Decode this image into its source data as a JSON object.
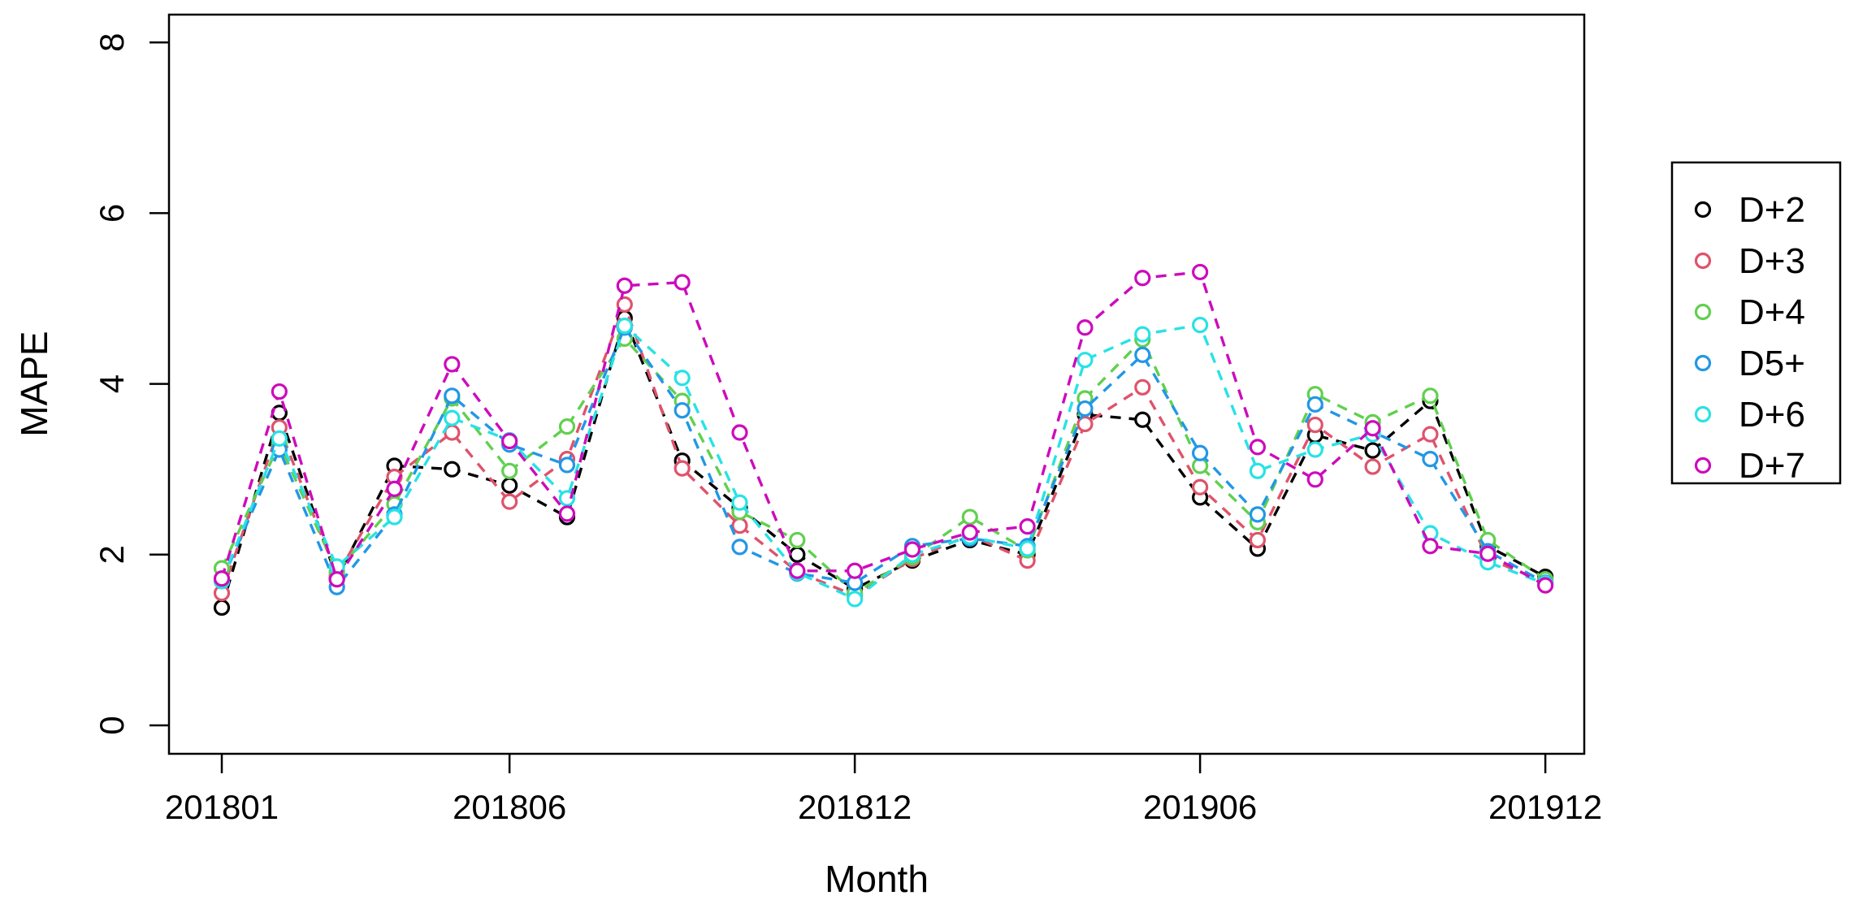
{
  "chart_data": {
    "type": "line",
    "title": "",
    "xlabel": "Month",
    "ylabel": "MAPE",
    "line_style": "dashed",
    "marker": "open-circle",
    "grid": false,
    "legend_position": "right-outside",
    "ylim": [
      0,
      8.6
    ],
    "y_ticks": [
      0,
      2,
      4,
      6,
      8
    ],
    "y_tick_labels": [
      "0",
      "2",
      "4",
      "6",
      "8"
    ],
    "x_tick_indices": [
      0,
      5,
      11,
      17,
      23
    ],
    "x_tick_labels": [
      "201801",
      "201806",
      "201812",
      "201906",
      "201912"
    ],
    "categories": [
      "201801",
      "201802",
      "201803",
      "201804",
      "201805",
      "201806",
      "201807",
      "201808",
      "201809",
      "201810",
      "201811",
      "201812",
      "201901",
      "201902",
      "201903",
      "201904",
      "201905",
      "201906",
      "201907",
      "201908",
      "201909",
      "201910",
      "201911",
      "201912"
    ],
    "series": [
      {
        "name": "D+2",
        "color": "#000000",
        "values": [
          1.38,
          3.66,
          1.72,
          3.04,
          3.0,
          2.81,
          2.44,
          4.77,
          3.1,
          2.55,
          2.0,
          1.6,
          1.93,
          2.17,
          2.0,
          3.64,
          3.58,
          2.67,
          2.07,
          3.4,
          3.22,
          3.8,
          2.1,
          1.74
        ]
      },
      {
        "name": "D+3",
        "color": "#DF536B",
        "values": [
          1.55,
          3.49,
          1.76,
          2.91,
          3.43,
          2.62,
          3.12,
          4.93,
          3.01,
          2.34,
          1.8,
          1.52,
          1.95,
          2.23,
          1.93,
          3.53,
          3.96,
          2.79,
          2.17,
          3.52,
          3.03,
          3.41,
          1.95,
          1.68
        ]
      },
      {
        "name": "D+4",
        "color": "#61D04F",
        "values": [
          1.84,
          3.3,
          1.8,
          2.59,
          3.83,
          2.98,
          3.5,
          4.53,
          3.8,
          2.5,
          2.17,
          1.55,
          1.97,
          2.44,
          2.05,
          3.83,
          4.52,
          3.04,
          2.38,
          3.88,
          3.55,
          3.86,
          2.17,
          1.71
        ]
      },
      {
        "name": "D5+",
        "color": "#2297E6",
        "values": [
          1.69,
          3.23,
          1.62,
          2.47,
          3.86,
          3.29,
          3.05,
          4.66,
          3.69,
          2.09,
          1.78,
          1.67,
          2.1,
          2.19,
          2.1,
          3.71,
          4.34,
          3.19,
          2.47,
          3.76,
          3.44,
          3.12,
          2.04,
          1.67
        ]
      },
      {
        "name": "D+6",
        "color": "#28E2E5",
        "values": [
          1.69,
          3.36,
          1.86,
          2.44,
          3.6,
          3.34,
          2.66,
          4.68,
          4.07,
          2.61,
          1.79,
          1.48,
          2.0,
          2.21,
          2.07,
          4.28,
          4.58,
          4.69,
          2.98,
          3.23,
          3.41,
          2.25,
          1.91,
          1.66
        ]
      },
      {
        "name": "D+7",
        "color": "#CD0BBC",
        "values": [
          1.72,
          3.91,
          1.71,
          2.77,
          4.23,
          3.33,
          2.48,
          5.15,
          5.19,
          3.43,
          1.81,
          1.81,
          2.06,
          2.26,
          2.33,
          4.66,
          5.24,
          5.31,
          3.26,
          2.88,
          3.48,
          2.1,
          2.01,
          1.64
        ]
      }
    ]
  }
}
